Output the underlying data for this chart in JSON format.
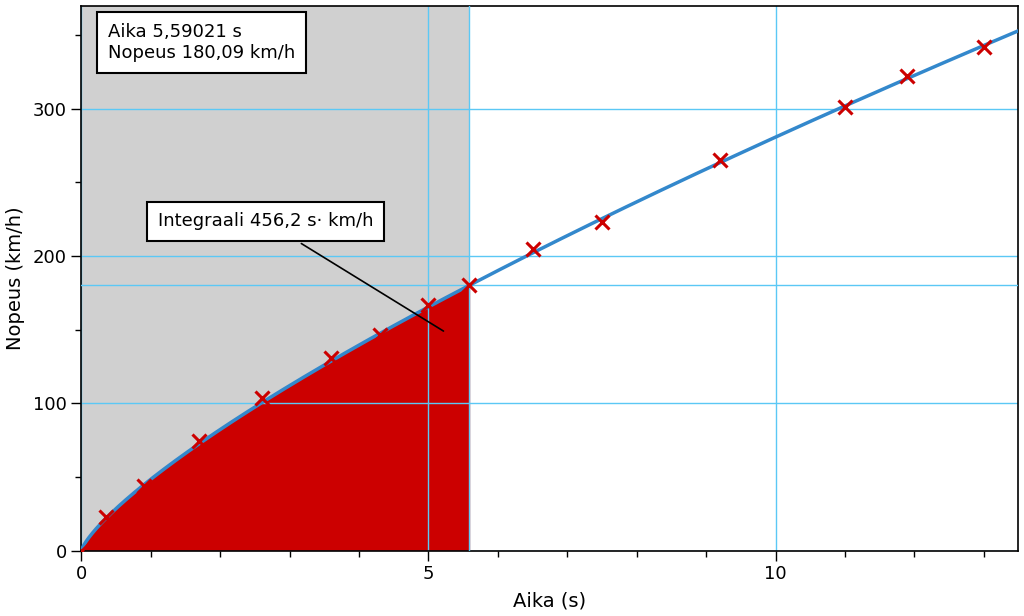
{
  "xlabel": "Aika (s)",
  "ylabel": "Nopeus (km/h)",
  "xlim": [
    0,
    13.5
  ],
  "ylim": [
    0,
    370
  ],
  "xticks": [
    0,
    5,
    10
  ],
  "yticks": [
    0,
    100,
    200,
    300
  ],
  "grid_color": "#5bc8f5",
  "bg_gray": "#d0d0d0",
  "bg_white": "#ffffff",
  "curve_color": "#3388cc",
  "fill_color": "#cc0000",
  "marker_color": "#cc0000",
  "text_box1_line1": "Aika 5,59021 s",
  "text_box1_line2": "Nopeus 180,09 km/h",
  "text_box2": "Integraali 456,2 s· km/h",
  "vline_x": 5.59021,
  "hline_y": 180.09,
  "n_exp": 0.763,
  "v_at_vline": 180.09,
  "t_at_vline": 5.59021,
  "data_points_x": [
    0.0,
    0.35,
    0.9,
    1.7,
    2.6,
    3.6,
    4.3,
    5.0,
    5.59021,
    6.5,
    7.5,
    9.2,
    11.0,
    11.9,
    13.0
  ],
  "figsize": [
    10.24,
    6.16
  ],
  "dpi": 100
}
